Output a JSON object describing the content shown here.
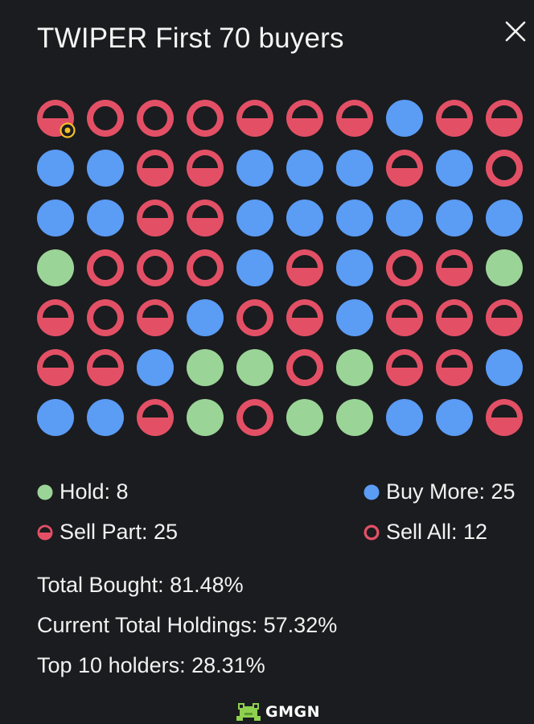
{
  "title": "TWIPER First 70 buyers",
  "colors": {
    "hold": "#9ad597",
    "buy_more": "#5b9cf5",
    "sell": "#e35066",
    "background": "#1b1c1f",
    "marker": "#f2c028"
  },
  "grid": [
    [
      "sell_part",
      "sell_all",
      "sell_all",
      "sell_all",
      "sell_part",
      "sell_part",
      "sell_part",
      "buy_more",
      "sell_part",
      "sell_part"
    ],
    [
      "buy_more",
      "buy_more",
      "sell_part",
      "sell_part",
      "buy_more",
      "buy_more",
      "buy_more",
      "sell_part",
      "buy_more",
      "sell_all"
    ],
    [
      "buy_more",
      "buy_more",
      "sell_part",
      "sell_part",
      "buy_more",
      "buy_more",
      "buy_more",
      "buy_more",
      "buy_more",
      "buy_more"
    ],
    [
      "hold",
      "sell_all",
      "sell_all",
      "sell_all",
      "buy_more",
      "sell_part",
      "buy_more",
      "sell_all",
      "sell_part",
      "hold"
    ],
    [
      "sell_part",
      "sell_all",
      "sell_part",
      "buy_more",
      "sell_all",
      "sell_part",
      "buy_more",
      "sell_part",
      "sell_part",
      "sell_part"
    ],
    [
      "sell_part",
      "sell_part",
      "buy_more",
      "hold",
      "hold",
      "sell_all",
      "hold",
      "sell_part",
      "sell_part",
      "buy_more"
    ],
    [
      "buy_more",
      "buy_more",
      "sell_part",
      "hold",
      "sell_all",
      "hold",
      "hold",
      "buy_more",
      "buy_more",
      "sell_part"
    ]
  ],
  "legend": {
    "hold": "Hold: 8",
    "buy_more": "Buy More: 25",
    "sell_part": "Sell Part: 25",
    "sell_all": "Sell All: 12"
  },
  "stats": {
    "total_bought": "Total Bought: 81.48%",
    "current_holdings": "Current Total Holdings: 57.32%",
    "top10": "Top 10 holders: 28.31%"
  },
  "brand": "GMGN"
}
